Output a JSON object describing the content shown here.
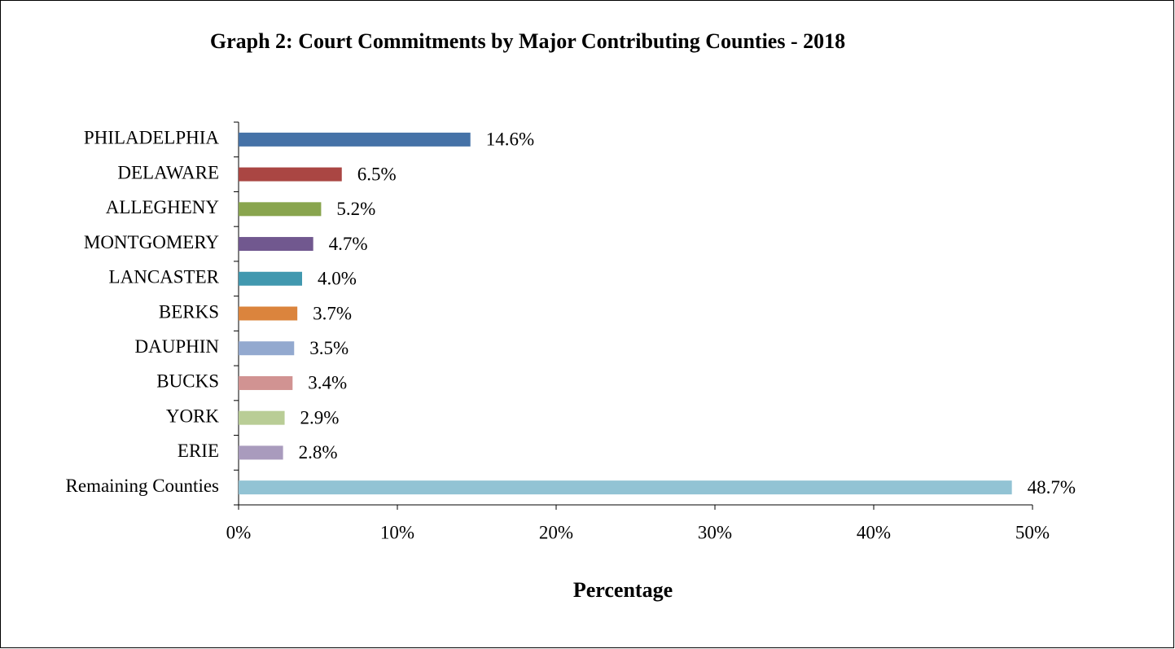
{
  "chart_data": {
    "type": "bar",
    "orientation": "horizontal",
    "title": "Graph 2: Court Commitments by Major Contributing Counties - 2018",
    "xlabel": "Percentage",
    "categories": [
      "PHILADELPHIA",
      "DELAWARE",
      "ALLEGHENY",
      "MONTGOMERY",
      "LANCASTER",
      "BERKS",
      "DAUPHIN",
      "BUCKS",
      "YORK",
      "ERIE",
      "Remaining Counties"
    ],
    "values": [
      14.6,
      6.5,
      5.2,
      4.7,
      4.0,
      3.7,
      3.5,
      3.4,
      2.9,
      2.8,
      48.7
    ],
    "value_labels": [
      "14.6%",
      "6.5%",
      "5.2%",
      "4.7%",
      "4.0%",
      "3.7%",
      "3.5%",
      "3.4%",
      "2.9%",
      "2.8%",
      "48.7%"
    ],
    "colors": [
      "#4572a7",
      "#aa4643",
      "#89a54e",
      "#71588f",
      "#4198af",
      "#db843d",
      "#93a9cf",
      "#d19392",
      "#b9cd96",
      "#a99bbd",
      "#92c3d4"
    ],
    "xlim": [
      0,
      50
    ],
    "xticks": [
      {
        "value": 0,
        "label": "0%"
      },
      {
        "value": 10,
        "label": "10%"
      },
      {
        "value": 20,
        "label": "20%"
      },
      {
        "value": 30,
        "label": "30%"
      },
      {
        "value": 40,
        "label": "40%"
      },
      {
        "value": 50,
        "label": "50%"
      }
    ],
    "grid": false
  }
}
